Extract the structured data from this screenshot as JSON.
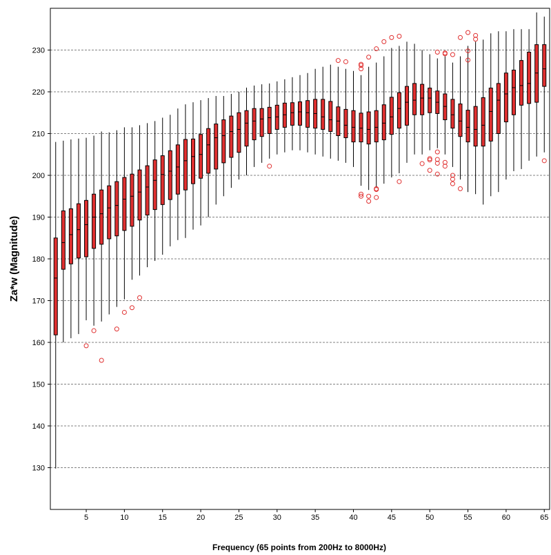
{
  "chart_data": {
    "type": "box",
    "xlabel": "Frequency (65 points from 200Hz to 8000Hz)",
    "ylabel": "Za*w (Magnitude)",
    "ylim": [
      120,
      240
    ],
    "xlim": [
      0.3,
      65.7
    ],
    "yticks": [
      130,
      140,
      150,
      160,
      170,
      180,
      190,
      200,
      210,
      220,
      230
    ],
    "xticks": [
      5,
      10,
      15,
      20,
      25,
      30,
      35,
      40,
      45,
      50,
      55,
      60,
      65
    ],
    "grid": "horizontal dashed",
    "box_color": "#e03030",
    "box_edge_color": "#000000",
    "outlier_color": "#e03030",
    "boxes": [
      {
        "x": 1,
        "whislo": 129.8,
        "q1": 161.8,
        "med": 175.4,
        "q3": 185.0,
        "whishi": 208.0,
        "fliers": []
      },
      {
        "x": 2,
        "whislo": 160.0,
        "q1": 177.5,
        "med": 183.9,
        "q3": 191.5,
        "whishi": 208.3,
        "fliers": []
      },
      {
        "x": 3,
        "whislo": 161.0,
        "q1": 178.8,
        "med": 185.8,
        "q3": 192.0,
        "whishi": 208.6,
        "fliers": []
      },
      {
        "x": 4,
        "whislo": 162.0,
        "q1": 180.2,
        "med": 187.0,
        "q3": 193.2,
        "whishi": 208.8,
        "fliers": []
      },
      {
        "x": 5,
        "whislo": 165.3,
        "q1": 180.5,
        "med": 188.2,
        "q3": 194.0,
        "whishi": 209.0,
        "fliers": [
          159.2
        ]
      },
      {
        "x": 6,
        "whislo": 164.0,
        "q1": 182.5,
        "med": 190.0,
        "q3": 195.5,
        "whishi": 209.5,
        "fliers": [
          162.8
        ]
      },
      {
        "x": 7,
        "whislo": 165.0,
        "q1": 183.5,
        "med": 190.8,
        "q3": 196.5,
        "whishi": 210.5,
        "fliers": [
          155.7
        ]
      },
      {
        "x": 8,
        "whislo": 166.7,
        "q1": 184.8,
        "med": 192.2,
        "q3": 197.5,
        "whishi": 210.3,
        "fliers": []
      },
      {
        "x": 9,
        "whislo": 168.5,
        "q1": 185.5,
        "med": 192.8,
        "q3": 198.5,
        "whishi": 210.8,
        "fliers": [
          163.2
        ]
      },
      {
        "x": 10,
        "whislo": 170.3,
        "q1": 186.8,
        "med": 194.3,
        "q3": 199.5,
        "whishi": 211.5,
        "fliers": [
          167.2
        ]
      },
      {
        "x": 11,
        "whislo": 175.0,
        "q1": 187.8,
        "med": 195.0,
        "q3": 200.3,
        "whishi": 211.5,
        "fliers": [
          168.3
        ]
      },
      {
        "x": 12,
        "whislo": 176.0,
        "q1": 189.3,
        "med": 196.0,
        "q3": 201.3,
        "whishi": 212.0,
        "fliers": [
          170.7
        ]
      },
      {
        "x": 13,
        "whislo": 178.0,
        "q1": 190.5,
        "med": 197.2,
        "q3": 202.3,
        "whishi": 212.5,
        "fliers": []
      },
      {
        "x": 14,
        "whislo": 179.5,
        "q1": 191.8,
        "med": 198.8,
        "q3": 203.7,
        "whishi": 213.0,
        "fliers": []
      },
      {
        "x": 15,
        "whislo": 181.0,
        "q1": 193.0,
        "med": 200.2,
        "q3": 204.7,
        "whishi": 213.8,
        "fliers": []
      },
      {
        "x": 16,
        "whislo": 183.0,
        "q1": 194.2,
        "med": 201.0,
        "q3": 205.9,
        "whishi": 214.5,
        "fliers": []
      },
      {
        "x": 17,
        "whislo": 184.5,
        "q1": 195.5,
        "med": 202.0,
        "q3": 207.3,
        "whishi": 216.0,
        "fliers": []
      },
      {
        "x": 18,
        "whislo": 185.0,
        "q1": 196.5,
        "med": 203.5,
        "q3": 208.6,
        "whishi": 217.0,
        "fliers": []
      },
      {
        "x": 19,
        "whislo": 187.0,
        "q1": 198.0,
        "med": 204.5,
        "q3": 208.7,
        "whishi": 217.5,
        "fliers": []
      },
      {
        "x": 20,
        "whislo": 188.0,
        "q1": 199.3,
        "med": 205.0,
        "q3": 209.8,
        "whishi": 218.0,
        "fliers": []
      },
      {
        "x": 21,
        "whislo": 190.0,
        "q1": 200.5,
        "med": 207.3,
        "q3": 211.2,
        "whishi": 218.5,
        "fliers": []
      },
      {
        "x": 22,
        "whislo": 193.0,
        "q1": 201.5,
        "med": 209.0,
        "q3": 212.3,
        "whishi": 219.0,
        "fliers": []
      },
      {
        "x": 23,
        "whislo": 195.0,
        "q1": 203.0,
        "med": 209.5,
        "q3": 213.3,
        "whishi": 219.0,
        "fliers": []
      },
      {
        "x": 24,
        "whislo": 197.0,
        "q1": 204.3,
        "med": 210.5,
        "q3": 214.2,
        "whishi": 219.5,
        "fliers": []
      },
      {
        "x": 25,
        "whislo": 199.0,
        "q1": 205.5,
        "med": 211.0,
        "q3": 215.0,
        "whishi": 220.0,
        "fliers": []
      },
      {
        "x": 26,
        "whislo": 200.0,
        "q1": 207.0,
        "med": 212.5,
        "q3": 215.5,
        "whishi": 221.0,
        "fliers": []
      },
      {
        "x": 27,
        "whislo": 202.0,
        "q1": 208.5,
        "med": 213.0,
        "q3": 216.0,
        "whishi": 221.5,
        "fliers": []
      },
      {
        "x": 28,
        "whislo": 203.0,
        "q1": 209.3,
        "med": 213.5,
        "q3": 216.0,
        "whishi": 221.8,
        "fliers": []
      },
      {
        "x": 29,
        "whislo": 204.0,
        "q1": 210.0,
        "med": 213.8,
        "q3": 216.3,
        "whishi": 222.0,
        "fliers": [
          202.2
        ]
      },
      {
        "x": 30,
        "whislo": 205.0,
        "q1": 211.0,
        "med": 214.0,
        "q3": 216.8,
        "whishi": 222.5,
        "fliers": []
      },
      {
        "x": 31,
        "whislo": 205.5,
        "q1": 211.5,
        "med": 214.5,
        "q3": 217.3,
        "whishi": 223.0,
        "fliers": []
      },
      {
        "x": 32,
        "whislo": 206.0,
        "q1": 212.0,
        "med": 215.0,
        "q3": 217.4,
        "whishi": 223.5,
        "fliers": []
      },
      {
        "x": 33,
        "whislo": 206.0,
        "q1": 212.0,
        "med": 215.2,
        "q3": 217.6,
        "whishi": 224.0,
        "fliers": []
      },
      {
        "x": 34,
        "whislo": 205.5,
        "q1": 211.5,
        "med": 215.0,
        "q3": 217.9,
        "whishi": 224.5,
        "fliers": []
      },
      {
        "x": 35,
        "whislo": 205.0,
        "q1": 211.3,
        "med": 214.8,
        "q3": 218.2,
        "whishi": 225.5,
        "fliers": []
      },
      {
        "x": 36,
        "whislo": 204.5,
        "q1": 211.0,
        "med": 214.0,
        "q3": 218.2,
        "whishi": 226.0,
        "fliers": []
      },
      {
        "x": 37,
        "whislo": 204.0,
        "q1": 210.5,
        "med": 213.3,
        "q3": 217.7,
        "whishi": 226.5,
        "fliers": []
      },
      {
        "x": 38,
        "whislo": 203.5,
        "q1": 209.5,
        "med": 213.0,
        "q3": 216.4,
        "whishi": 226.0,
        "fliers": [
          227.5
        ]
      },
      {
        "x": 39,
        "whislo": 203.0,
        "q1": 209.0,
        "med": 212.0,
        "q3": 215.8,
        "whishi": 225.5,
        "fliers": [
          227.2
        ]
      },
      {
        "x": 40,
        "whislo": 202.0,
        "q1": 208.0,
        "med": 211.5,
        "q3": 215.5,
        "whishi": 225.0,
        "fliers": []
      },
      {
        "x": 41,
        "whislo": 197.5,
        "q1": 208.0,
        "med": 211.3,
        "q3": 214.9,
        "whishi": 224.0,
        "fliers": [
          195.5,
          195.0,
          226.6,
          226.3,
          225.5
        ]
      },
      {
        "x": 42,
        "whislo": 196.5,
        "q1": 207.5,
        "med": 211.0,
        "q3": 215.2,
        "whishi": 226.0,
        "fliers": [
          195.0,
          193.8,
          228.3
        ]
      },
      {
        "x": 43,
        "whislo": 197.0,
        "q1": 208.0,
        "med": 211.5,
        "q3": 215.5,
        "whishi": 227.0,
        "fliers": [
          196.8,
          196.6,
          194.7,
          230.3
        ]
      },
      {
        "x": 44,
        "whislo": 198.0,
        "q1": 208.5,
        "med": 212.5,
        "q3": 216.9,
        "whishi": 228.5,
        "fliers": [
          232.0
        ]
      },
      {
        "x": 45,
        "whislo": 199.5,
        "q1": 209.8,
        "med": 214.0,
        "q3": 218.7,
        "whishi": 230.5,
        "fliers": [
          233.0
        ]
      },
      {
        "x": 46,
        "whislo": 200.5,
        "q1": 211.3,
        "med": 216.0,
        "q3": 219.8,
        "whishi": 231.0,
        "fliers": [
          198.5,
          233.3
        ]
      },
      {
        "x": 47,
        "whislo": 203.0,
        "q1": 212.0,
        "med": 217.5,
        "q3": 221.3,
        "whishi": 232.0,
        "fliers": []
      },
      {
        "x": 48,
        "whislo": 205.0,
        "q1": 214.5,
        "med": 218.0,
        "q3": 222.0,
        "whishi": 231.5,
        "fliers": []
      },
      {
        "x": 49,
        "whislo": 205.0,
        "q1": 214.5,
        "med": 218.5,
        "q3": 221.8,
        "whishi": 230.0,
        "fliers": [
          202.8
        ]
      },
      {
        "x": 50,
        "whislo": 206.0,
        "q1": 215.0,
        "med": 218.5,
        "q3": 220.9,
        "whishi": 229.0,
        "fliers": [
          204.0,
          203.7,
          201.2
        ]
      },
      {
        "x": 51,
        "whislo": 206.5,
        "q1": 214.8,
        "med": 217.5,
        "q3": 220.2,
        "whishi": 228.0,
        "fliers": [
          205.6,
          203.8,
          202.9,
          200.3,
          229.5
        ]
      },
      {
        "x": 52,
        "whislo": 205.0,
        "q1": 213.3,
        "med": 216.5,
        "q3": 219.5,
        "whishi": 228.5,
        "fliers": [
          203.1,
          202.2,
          229.3,
          229.1
        ]
      },
      {
        "x": 53,
        "whislo": 202.0,
        "q1": 211.3,
        "med": 214.5,
        "q3": 218.2,
        "whishi": 227.0,
        "fliers": [
          200.0,
          199.1,
          198.0,
          228.9
        ]
      },
      {
        "x": 54,
        "whislo": 199.0,
        "q1": 209.3,
        "med": 213.0,
        "q3": 217.1,
        "whishi": 228.5,
        "fliers": [
          196.8,
          233.0
        ]
      },
      {
        "x": 55,
        "whislo": 196.0,
        "q1": 208.0,
        "med": 211.5,
        "q3": 215.6,
        "whishi": 231.0,
        "fliers": [
          227.6,
          229.8,
          234.2
        ]
      },
      {
        "x": 56,
        "whislo": 195.5,
        "q1": 207.0,
        "med": 211.0,
        "q3": 216.5,
        "whishi": 232.0,
        "fliers": [
          232.6,
          233.5
        ]
      },
      {
        "x": 57,
        "whislo": 193.0,
        "q1": 207.0,
        "med": 212.0,
        "q3": 218.6,
        "whishi": 232.5,
        "fliers": []
      },
      {
        "x": 58,
        "whislo": 195.0,
        "q1": 208.2,
        "med": 215.3,
        "q3": 220.9,
        "whishi": 234.0,
        "fliers": []
      },
      {
        "x": 59,
        "whislo": 196.0,
        "q1": 210.0,
        "med": 218.0,
        "q3": 222.0,
        "whishi": 234.5,
        "fliers": []
      },
      {
        "x": 60,
        "whislo": 199.0,
        "q1": 212.8,
        "med": 219.5,
        "q3": 224.5,
        "whishi": 234.5,
        "fliers": []
      },
      {
        "x": 61,
        "whislo": 201.0,
        "q1": 214.5,
        "med": 221.0,
        "q3": 225.2,
        "whishi": 235.0,
        "fliers": []
      },
      {
        "x": 62,
        "whislo": 201.5,
        "q1": 216.8,
        "med": 221.5,
        "q3": 227.5,
        "whishi": 235.0,
        "fliers": []
      },
      {
        "x": 63,
        "whislo": 203.5,
        "q1": 217.2,
        "med": 222.0,
        "q3": 229.5,
        "whishi": 235.0,
        "fliers": []
      },
      {
        "x": 64,
        "whislo": 204.5,
        "q1": 217.5,
        "med": 224.5,
        "q3": 231.3,
        "whishi": 239.0,
        "fliers": []
      },
      {
        "x": 65,
        "whislo": 205.5,
        "q1": 221.3,
        "med": 225.5,
        "q3": 231.3,
        "whishi": 238.0,
        "fliers": [
          203.5
        ]
      }
    ]
  }
}
